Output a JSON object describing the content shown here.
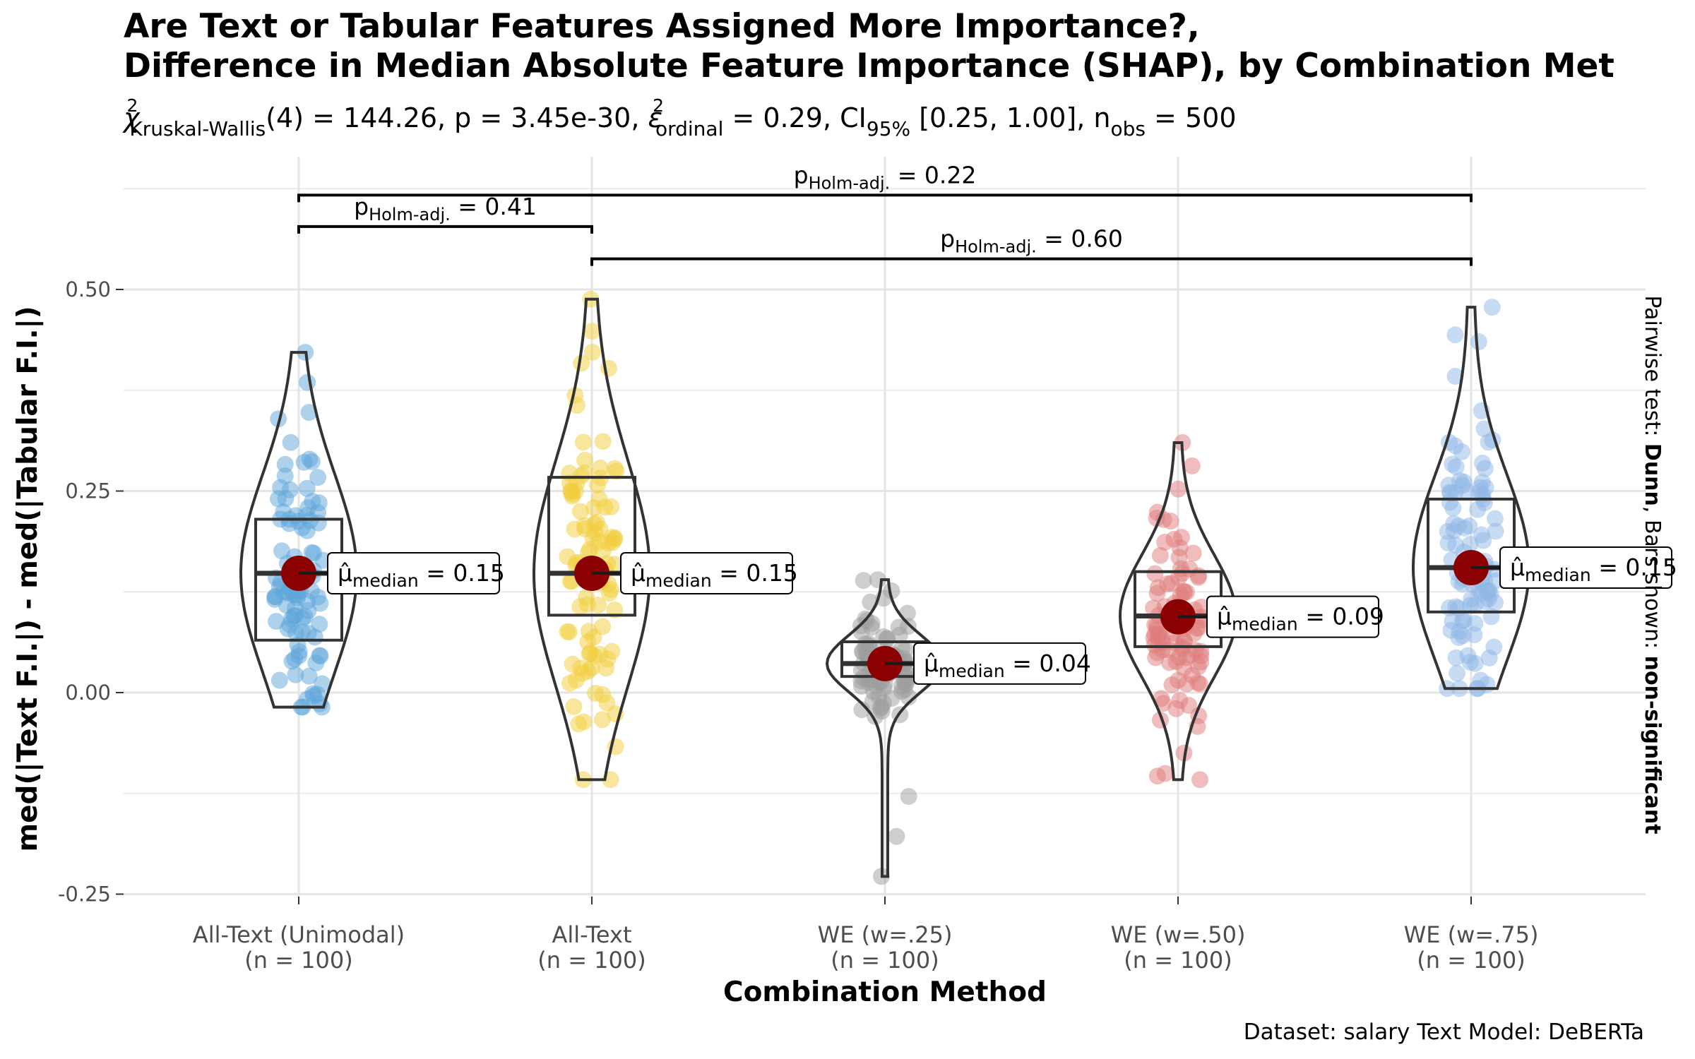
{
  "chart_data": {
    "type": "violin-box",
    "title_line1": "Are Text or Tabular Features Assigned More Importance?,",
    "title_line2": "Difference in Median Absolute Feature Importance (SHAP), by Combination Met",
    "subtitle": "χ²Kruskal-Wallis(4) = 144.26, p = 3.45e-30, ε²ordinal = 0.29, CI95% [0.25, 1.00], nobs = 500",
    "ylabel": "med(|Text F.I.|) - med(|Tabular F.I.|)",
    "xlabel": "Combination Method",
    "side_label_prefix": "Pairwise test: ",
    "side_label_test": "Dunn",
    "side_label_middle": ", Bars shown: ",
    "side_label_bars": "non-significant",
    "caption": "Dataset:  salary Text Model:  DeBERTa",
    "ylim": [
      -0.25,
      0.5
    ],
    "yticks": [
      {
        "value": 0.5,
        "label": "0.50"
      },
      {
        "value": 0.25,
        "label": "0.25"
      },
      {
        "value": 0.0,
        "label": "0.00"
      },
      {
        "value": -0.25,
        "label": "-0.25"
      }
    ],
    "grid": true,
    "groups": [
      {
        "name": "All-Text (Unimodal)",
        "n_label": "(n = 100)",
        "color": "#5DA5DA",
        "q1": 0.065,
        "median": 0.148,
        "q3": 0.215,
        "min": -0.018,
        "max": 0.422,
        "mean_point": 0.148,
        "label": "μ̂median = 0.15"
      },
      {
        "name": "All-Text",
        "n_label": "(n = 100)",
        "color": "#F2CD3C",
        "q1": 0.096,
        "median": 0.148,
        "q3": 0.267,
        "min": -0.108,
        "max": 0.488,
        "mean_point": 0.148,
        "label": "μ̂median = 0.15"
      },
      {
        "name": "WE (w=.25)",
        "n_label": "(n = 100)",
        "color": "#9E9E9E",
        "q1": 0.02,
        "median": 0.036,
        "q3": 0.063,
        "min": -0.228,
        "max": 0.14,
        "mean_point": 0.036,
        "label": "μ̂median = 0.04"
      },
      {
        "name": "WE (w=.50)",
        "n_label": "(n = 100)",
        "color": "#E07B7B",
        "q1": 0.057,
        "median": 0.095,
        "q3": 0.15,
        "min": -0.108,
        "max": 0.31,
        "mean_point": 0.094,
        "label": "μ̂median = 0.09"
      },
      {
        "name": "WE (w=.75)",
        "n_label": "(n = 100)",
        "color": "#8FB8E6",
        "q1": 0.1,
        "median": 0.155,
        "q3": 0.24,
        "min": 0.005,
        "max": 0.478,
        "mean_point": 0.155,
        "label": "μ̂median = 0.15"
      }
    ],
    "pairwise": [
      {
        "from": 0,
        "to": 1,
        "y": 0.578,
        "text": "pHolm-adj. = 0.41"
      },
      {
        "from": 0,
        "to": 4,
        "y": 0.617,
        "text": "pHolm-adj. = 0.22"
      },
      {
        "from": 1,
        "to": 4,
        "y": 0.538,
        "text": "pHolm-adj. = 0.60"
      }
    ]
  }
}
